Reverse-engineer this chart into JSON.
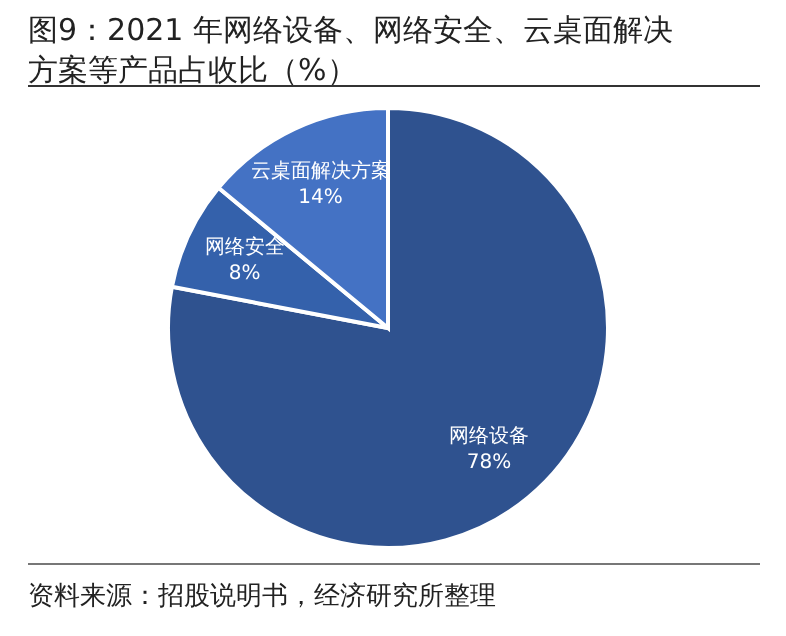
{
  "chart_data": {
    "type": "pie",
    "title": "图9：2021 年网络设备、网络安全、云桌面解决方案等产品占收比（%）",
    "categories": [
      "网络设备",
      "网络安全",
      "云桌面解决方案"
    ],
    "values": [
      78,
      8,
      14
    ],
    "colors": [
      "#2f528f",
      "#3461ab",
      "#4472c4"
    ],
    "value_labels": [
      "78%",
      "8%",
      "14%"
    ],
    "annotations": [
      "资料来源：招股说明书，经济研究所整理"
    ]
  }
}
